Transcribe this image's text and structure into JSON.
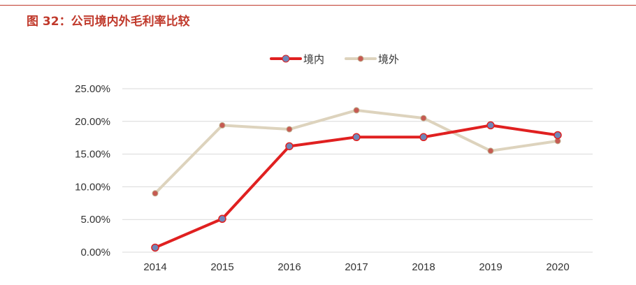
{
  "figure": {
    "title": "图 32：公司境内外毛利率比较"
  },
  "colors": {
    "domestic": "#e02020",
    "overseas": "#ddd3bd",
    "domestic_marker": "#6f86b8",
    "overseas_marker": "#c65a52",
    "grid": "#d9d9d9",
    "accent": "#c0392b"
  },
  "chart_data": {
    "type": "line",
    "title": "",
    "xlabel": "",
    "ylabel": "",
    "categories": [
      "2014",
      "2015",
      "2016",
      "2017",
      "2018",
      "2019",
      "2020"
    ],
    "ylim": [
      0,
      25
    ],
    "yticks": [
      "0.00%",
      "5.00%",
      "10.00%",
      "15.00%",
      "20.00%",
      "25.00%"
    ],
    "grid": true,
    "legend_position": "top",
    "series": [
      {
        "name": "境内",
        "values": [
          0.7,
          5.1,
          16.2,
          17.6,
          17.6,
          19.4,
          17.9
        ]
      },
      {
        "name": "境外",
        "values": [
          9.0,
          19.4,
          18.8,
          21.7,
          20.5,
          15.5,
          17.0
        ]
      }
    ]
  }
}
